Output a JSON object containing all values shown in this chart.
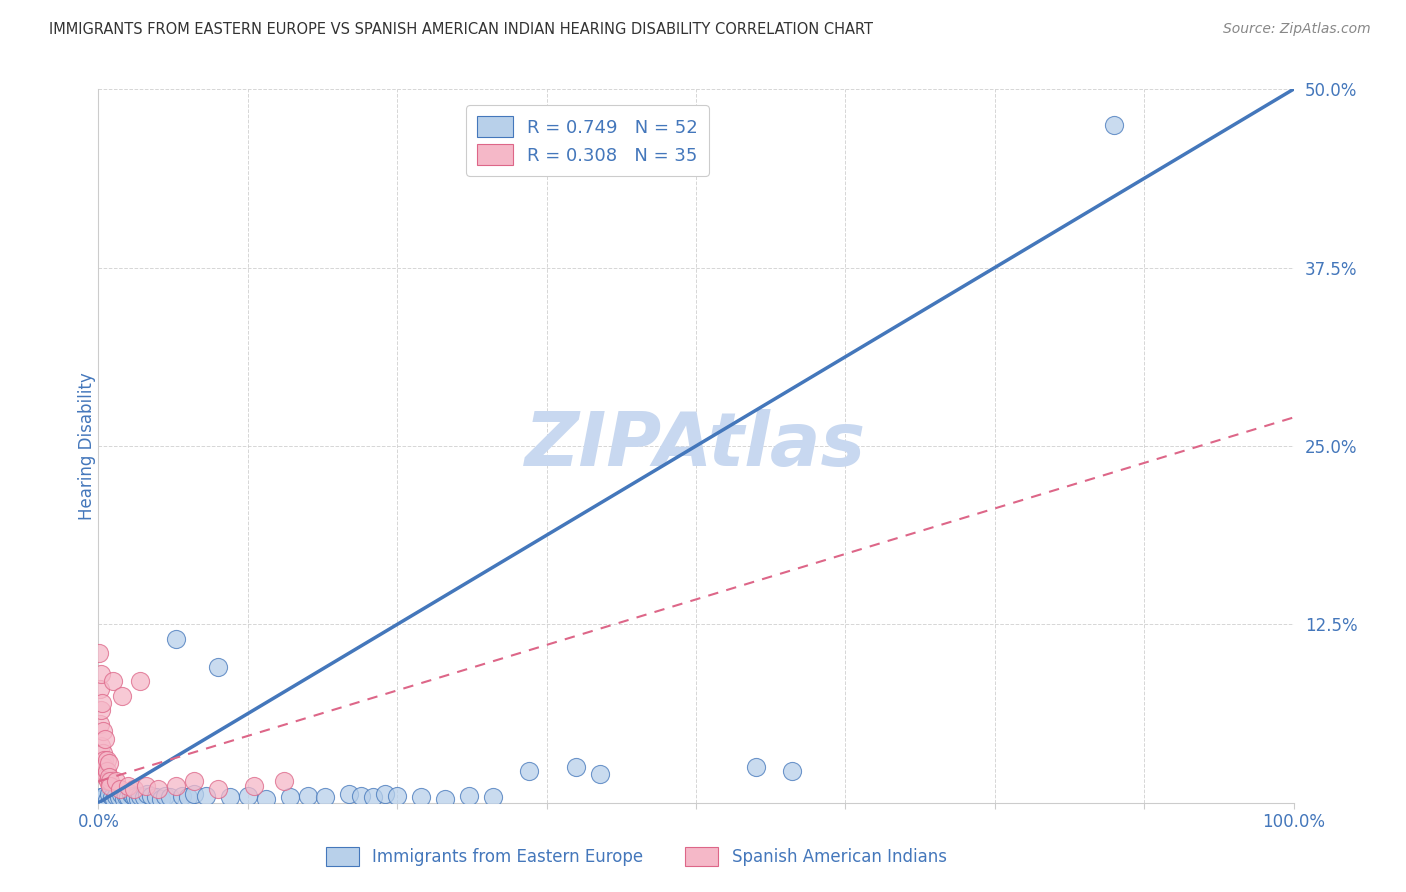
{
  "title": "IMMIGRANTS FROM EASTERN EUROPE VS SPANISH AMERICAN INDIAN HEARING DISABILITY CORRELATION CHART",
  "source": "Source: ZipAtlas.com",
  "xlabel_blue": "Immigrants from Eastern Europe",
  "xlabel_pink": "Spanish American Indians",
  "ylabel": "Hearing Disability",
  "r_blue": 0.749,
  "n_blue": 52,
  "r_pink": 0.308,
  "n_pink": 35,
  "blue_color": "#b8d0ea",
  "blue_line_color": "#4477bb",
  "pink_color": "#f5b8c8",
  "pink_line_color": "#dd6688",
  "blue_scatter": [
    [
      0.2,
      0.4
    ],
    [
      0.3,
      0.3
    ],
    [
      0.5,
      0.5
    ],
    [
      0.7,
      0.2
    ],
    [
      0.9,
      0.6
    ],
    [
      1.1,
      0.4
    ],
    [
      1.3,
      0.3
    ],
    [
      1.5,
      0.5
    ],
    [
      1.7,
      0.4
    ],
    [
      1.9,
      0.6
    ],
    [
      2.1,
      0.3
    ],
    [
      2.3,
      0.5
    ],
    [
      2.5,
      0.4
    ],
    [
      2.7,
      0.6
    ],
    [
      2.9,
      0.5
    ],
    [
      3.1,
      0.4
    ],
    [
      3.3,
      0.3
    ],
    [
      3.5,
      0.5
    ],
    [
      3.8,
      0.4
    ],
    [
      4.1,
      0.6
    ],
    [
      4.4,
      0.5
    ],
    [
      4.8,
      0.4
    ],
    [
      5.2,
      0.3
    ],
    [
      5.6,
      0.5
    ],
    [
      6.0,
      0.4
    ],
    [
      6.5,
      11.5
    ],
    [
      7.0,
      0.5
    ],
    [
      7.5,
      0.4
    ],
    [
      8.0,
      0.6
    ],
    [
      9.0,
      0.5
    ],
    [
      10.0,
      9.5
    ],
    [
      11.0,
      0.4
    ],
    [
      12.5,
      0.5
    ],
    [
      14.0,
      0.3
    ],
    [
      16.0,
      0.4
    ],
    [
      17.5,
      0.5
    ],
    [
      19.0,
      0.4
    ],
    [
      21.0,
      0.6
    ],
    [
      22.0,
      0.5
    ],
    [
      23.0,
      0.4
    ],
    [
      24.0,
      0.6
    ],
    [
      25.0,
      0.5
    ],
    [
      27.0,
      0.4
    ],
    [
      29.0,
      0.3
    ],
    [
      31.0,
      0.5
    ],
    [
      33.0,
      0.4
    ],
    [
      36.0,
      2.2
    ],
    [
      40.0,
      2.5
    ],
    [
      42.0,
      2.0
    ],
    [
      55.0,
      2.5
    ],
    [
      58.0,
      2.2
    ],
    [
      85.0,
      47.5
    ]
  ],
  "pink_scatter": [
    [
      0.05,
      10.5
    ],
    [
      0.1,
      5.5
    ],
    [
      0.15,
      8.0
    ],
    [
      0.18,
      6.5
    ],
    [
      0.22,
      9.0
    ],
    [
      0.25,
      4.0
    ],
    [
      0.3,
      7.0
    ],
    [
      0.35,
      3.5
    ],
    [
      0.4,
      5.0
    ],
    [
      0.45,
      3.0
    ],
    [
      0.5,
      2.5
    ],
    [
      0.55,
      4.5
    ],
    [
      0.6,
      2.0
    ],
    [
      0.65,
      1.8
    ],
    [
      0.7,
      3.0
    ],
    [
      0.75,
      2.2
    ],
    [
      0.8,
      1.5
    ],
    [
      0.85,
      2.8
    ],
    [
      0.9,
      1.8
    ],
    [
      0.95,
      1.5
    ],
    [
      1.0,
      1.2
    ],
    [
      1.2,
      8.5
    ],
    [
      1.5,
      1.5
    ],
    [
      1.8,
      1.0
    ],
    [
      2.0,
      7.5
    ],
    [
      2.5,
      1.2
    ],
    [
      3.0,
      1.0
    ],
    [
      3.5,
      8.5
    ],
    [
      4.0,
      1.2
    ],
    [
      5.0,
      1.0
    ],
    [
      6.5,
      1.2
    ],
    [
      8.0,
      1.5
    ],
    [
      10.0,
      1.0
    ],
    [
      13.0,
      1.2
    ],
    [
      15.5,
      1.5
    ]
  ],
  "xlim": [
    0,
    100
  ],
  "ylim": [
    0,
    50
  ],
  "xticks": [
    0,
    12.5,
    25,
    37.5,
    50,
    62.5,
    75,
    87.5,
    100
  ],
  "xticklabels": [
    "0.0%",
    "",
    "",
    "",
    "",
    "",
    "",
    "",
    "100.0%"
  ],
  "ytick_positions": [
    0,
    12.5,
    25,
    37.5,
    50
  ],
  "ytick_labels_right": [
    "",
    "12.5%",
    "25.0%",
    "37.5%",
    "50.0%"
  ],
  "blue_line_x": [
    0,
    100
  ],
  "blue_line_y": [
    0,
    50
  ],
  "pink_line_x": [
    0,
    100
  ],
  "pink_line_y": [
    1.5,
    27.0
  ],
  "watermark": "ZIPAtlas",
  "watermark_color": "#c8d8f0",
  "title_color": "#333333",
  "axis_label_color": "#4477bb",
  "tick_color": "#4477bb",
  "grid_color": "#cccccc"
}
